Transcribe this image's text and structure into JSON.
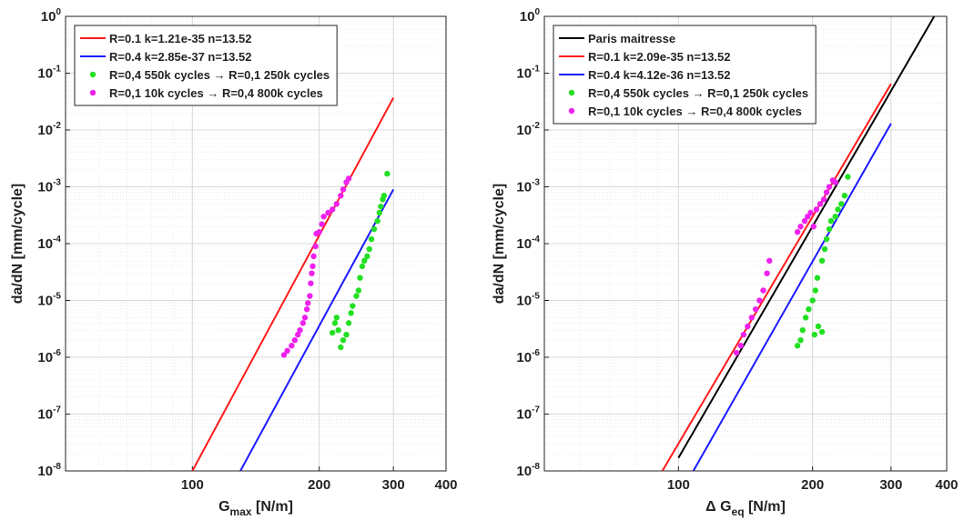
{
  "chart_data": [
    {
      "type": "scatter",
      "xlabel": "G_{max} [N/m]",
      "ylabel": "da/dN [mm/cycle]",
      "xscale": "log",
      "yscale": "log",
      "grid": true,
      "legend": "upper left",
      "xlim": [
        50,
        400
      ],
      "ylim": [
        1e-08,
        1
      ],
      "xticks": [
        100,
        200,
        300,
        400
      ],
      "yticks": [
        {
          "value": 1e-08,
          "label": "10^-8"
        },
        {
          "value": 1e-07,
          "label": "10^-7"
        },
        {
          "value": 1e-06,
          "label": "10^-6"
        },
        {
          "value": 1e-05,
          "label": "10^-5"
        },
        {
          "value": 0.0001,
          "label": "10^-4"
        },
        {
          "value": 0.001,
          "label": "10^-3"
        },
        {
          "value": 0.01,
          "label": "10^-2"
        },
        {
          "value": 0.1,
          "label": "10^-1"
        },
        {
          "value": 1,
          "label": "10^0"
        }
      ],
      "series": [
        {
          "name": "R=0.1 k=1.21e-35 n=13.52",
          "color": "#ff1a1a",
          "mode": "line",
          "x": [
            100,
            300
          ],
          "values": [
            1e-08,
            0.037
          ]
        },
        {
          "name": "R=0.4 k=2.85e-37 n=13.52",
          "color": "#1a1aff",
          "mode": "line",
          "x": [
            130,
            300
          ],
          "values": [
            1e-08,
            0.0009
          ]
        },
        {
          "name": "R=0,4 550k cycles → R=0,1 250k cycles",
          "color": "#22e022",
          "mode": "markers",
          "x": [
            215,
            218,
            220,
            222,
            225,
            228,
            232,
            235,
            238,
            240,
            245,
            248,
            250,
            253,
            256,
            260,
            263,
            266,
            270,
            275,
            278,
            280,
            283,
            285,
            290
          ],
          "values": [
            2.7e-06,
            4e-06,
            5e-06,
            3e-06,
            1.5e-06,
            2e-06,
            2.5e-06,
            4e-06,
            6e-06,
            8e-06,
            1.2e-05,
            1.5e-05,
            2.5e-05,
            4e-05,
            5e-05,
            6e-05,
            8e-05,
            0.00012,
            0.00018,
            0.00025,
            0.00035,
            0.00045,
            0.0006,
            0.0007,
            0.0017
          ]
        },
        {
          "name": "R=0,1 10k cycles → R=0,4 800k cycles",
          "color": "#ee22ee",
          "mode": "markers",
          "x": [
            165,
            168,
            172,
            175,
            178,
            180,
            183,
            185,
            187,
            188,
            190,
            191,
            192,
            193,
            194,
            196,
            197,
            200,
            203,
            205,
            210,
            215,
            220,
            225,
            228,
            232,
            235
          ],
          "values": [
            1.1e-06,
            1.3e-06,
            1.6e-06,
            2e-06,
            2.5e-06,
            3e-06,
            4e-06,
            5e-06,
            7e-06,
            9e-06,
            1.2e-05,
            2e-05,
            3e-05,
            4e-05,
            6e-05,
            9e-05,
            0.00015,
            0.00016,
            0.00022,
            0.0003,
            0.00035,
            0.0004,
            0.0005,
            0.0007,
            0.0009,
            0.0012,
            0.0014
          ]
        }
      ]
    },
    {
      "type": "scatter",
      "xlabel": "Δ G_{eq} [N/m]",
      "ylabel": "da/dN [mm/cycle]",
      "xscale": "log",
      "yscale": "log",
      "grid": true,
      "legend": "upper left",
      "xlim": [
        50,
        400
      ],
      "ylim": [
        1e-08,
        1
      ],
      "xticks": [
        100,
        200,
        300,
        400
      ],
      "yticks": [
        {
          "value": 1e-08,
          "label": "10^-8"
        },
        {
          "value": 1e-07,
          "label": "10^-7"
        },
        {
          "value": 1e-06,
          "label": "10^-6"
        },
        {
          "value": 1e-05,
          "label": "10^-5"
        },
        {
          "value": 0.0001,
          "label": "10^-4"
        },
        {
          "value": 0.001,
          "label": "10^-3"
        },
        {
          "value": 0.01,
          "label": "10^-2"
        },
        {
          "value": 0.1,
          "label": "10^-1"
        },
        {
          "value": 1,
          "label": "10^0"
        }
      ],
      "series": [
        {
          "name": "Paris maitresse",
          "color": "#000000",
          "mode": "line",
          "x": [
            100,
            375
          ],
          "values": [
            1.7e-08,
            1
          ]
        },
        {
          "name": "R=0.1 k=2.09e-35 n=13.52",
          "color": "#ff1a1a",
          "mode": "line",
          "x": [
            92,
            300
          ],
          "values": [
            1e-08,
            0.065
          ]
        },
        {
          "name": "R=0.4 k=4.12e-36 n=13.52",
          "color": "#1a1aff",
          "mode": "line",
          "x": [
            108,
            300
          ],
          "values": [
            1e-08,
            0.013
          ]
        },
        {
          "name": "R=0,4 550k cycles → R=0,1 250k cycles",
          "color": "#22e022",
          "mode": "markers",
          "x": [
            185,
            188,
            190,
            193,
            196,
            200,
            203,
            205,
            202,
            206,
            210,
            210,
            213,
            215,
            218,
            220,
            225,
            228,
            232,
            236,
            240
          ],
          "values": [
            1.6e-06,
            2e-06,
            3e-06,
            5e-06,
            7e-06,
            1e-05,
            1.5e-05,
            2.5e-05,
            2.5e-06,
            3.5e-06,
            2.8e-06,
            5e-05,
            8e-05,
            0.00012,
            0.00018,
            0.00025,
            0.0003,
            0.0004,
            0.0005,
            0.0007,
            0.0015
          ]
        },
        {
          "name": "R=0,1 10k cycles → R=0,4 800k cycles",
          "color": "#ee22ee",
          "mode": "markers",
          "x": [
            135,
            138,
            140,
            143,
            146,
            149,
            152,
            155,
            158,
            160,
            185,
            188,
            192,
            195,
            198,
            201,
            204,
            208,
            212,
            215,
            218,
            222,
            225
          ],
          "values": [
            1.2e-06,
            1.6e-06,
            2.5e-06,
            3.5e-06,
            5e-06,
            7e-06,
            1e-05,
            1.5e-05,
            3e-05,
            5e-05,
            0.00016,
            0.0002,
            0.00025,
            0.0003,
            0.00035,
            0.0002,
            0.0004,
            0.0005,
            0.0006,
            0.0008,
            0.001,
            0.0013,
            0.0012
          ]
        }
      ]
    }
  ]
}
